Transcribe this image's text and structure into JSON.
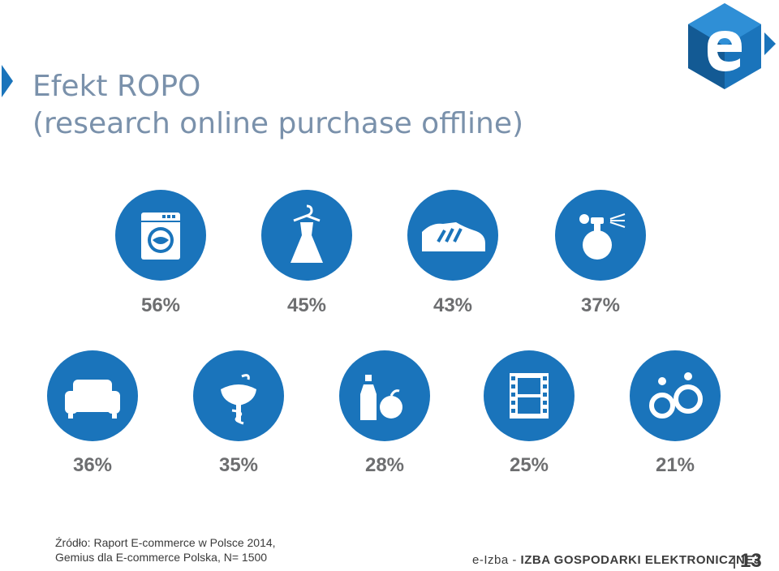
{
  "slide": {
    "title_line1": "Efekt ROPO",
    "title_line2": "(research online purchase offline)"
  },
  "colors": {
    "accent": "#1a74bb",
    "title": "#7a91ab",
    "percent": "#6d6e70"
  },
  "row1": [
    {
      "icon": "washing-machine-icon",
      "value": "56%"
    },
    {
      "icon": "dress-icon",
      "value": "45%"
    },
    {
      "icon": "sneaker-icon",
      "value": "43%"
    },
    {
      "icon": "perfume-icon",
      "value": "37%"
    }
  ],
  "row2": [
    {
      "icon": "sofa-icon",
      "value": "36%"
    },
    {
      "icon": "pharmacy-icon",
      "value": "35%"
    },
    {
      "icon": "food-drink-icon",
      "value": "28%"
    },
    {
      "icon": "film-icon",
      "value": "25%"
    },
    {
      "icon": "earrings-icon",
      "value": "21%"
    }
  ],
  "source": {
    "line1": "Źródło: Raport E-commerce w Polsce 2014,",
    "line2": "Gemius dla E-commerce Polska, N= 1500"
  },
  "footer": {
    "brand": "e-Izba",
    "separator": " - ",
    "org": "IZBA GOSPODARKI ELEKTRONICZNEJ",
    "page_number": "13"
  }
}
